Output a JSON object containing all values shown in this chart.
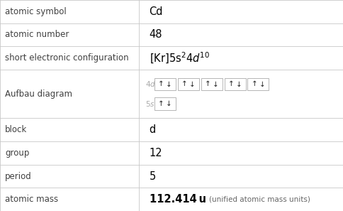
{
  "rows": [
    {
      "label": "atomic symbol",
      "value": "Cd",
      "type": "text"
    },
    {
      "label": "atomic number",
      "value": "48",
      "type": "text"
    },
    {
      "label": "short electronic configuration",
      "value_parts": [
        {
          "text": "[Kr]5s",
          "style": "normal"
        },
        {
          "text": "2",
          "style": "super"
        },
        {
          "text": "4d",
          "style": "italic"
        },
        {
          "text": "10",
          "style": "super"
        }
      ],
      "type": "config"
    },
    {
      "label": "Aufbau diagram",
      "value": "",
      "type": "aufbau"
    },
    {
      "label": "block",
      "value": "d",
      "type": "text"
    },
    {
      "label": "group",
      "value": "12",
      "type": "text"
    },
    {
      "label": "period",
      "value": "5",
      "type": "text"
    },
    {
      "label": "atomic mass",
      "value": "112.414 u",
      "value2": "(unified atomic mass units)",
      "type": "mass"
    }
  ],
  "col_split": 0.405,
  "bg_color": "#ffffff",
  "border_color": "#c8c8c8",
  "label_color": "#404040",
  "value_color": "#000000",
  "label_fontsize": 8.5,
  "value_fontsize": 10.5,
  "aufbau_label_color": "#aaaaaa",
  "box_edge_color": "#aaaaaa",
  "row_heights": [
    1.0,
    1.0,
    1.0,
    2.1,
    1.0,
    1.0,
    1.0,
    1.0
  ]
}
